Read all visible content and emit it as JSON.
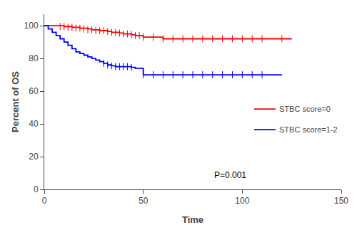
{
  "chart_data": {
    "type": "step",
    "xlabel": "Time",
    "ylabel": "Percent of OS",
    "xlim": [
      0,
      150
    ],
    "ylim": [
      0,
      107
    ],
    "xticks": [
      0,
      50,
      100,
      150
    ],
    "yticks": [
      0,
      20,
      40,
      60,
      80,
      100
    ],
    "grid": false,
    "legend": "right",
    "annotations": [
      {
        "text": "P=0.001",
        "x": 85,
        "y": 5
      }
    ],
    "series": [
      {
        "name": "STBC score=0",
        "color": "#FF0000",
        "x": [
          0,
          4,
          6,
          8,
          10,
          12,
          14,
          16,
          18,
          20,
          22,
          24,
          26,
          28,
          30,
          32,
          34,
          36,
          38,
          40,
          42,
          44,
          46,
          48,
          50,
          55,
          60,
          65,
          70,
          75,
          80,
          85,
          90,
          95,
          100,
          105,
          110,
          120,
          125
        ],
        "values": [
          100,
          100,
          100,
          100,
          99.5,
          99.5,
          99,
          99,
          98.5,
          98.5,
          98,
          97.5,
          97.5,
          97,
          97,
          96.5,
          96,
          96,
          95.5,
          95,
          95,
          94.5,
          94,
          94,
          93,
          93,
          92,
          92,
          92,
          92,
          92,
          92,
          92,
          92,
          92,
          92,
          92,
          92,
          92
        ],
        "censors": {
          "x": [
            8,
            10,
            12,
            14,
            16,
            18,
            20,
            22,
            24,
            26,
            28,
            30,
            32,
            34,
            36,
            38,
            40,
            42,
            44,
            46,
            48,
            50,
            55,
            60,
            65,
            70,
            75,
            80,
            85,
            90,
            95,
            100,
            105,
            110,
            120
          ],
          "values": [
            99.5,
            99.5,
            99,
            99,
            98.5,
            98.5,
            98,
            97.5,
            97.5,
            97,
            97,
            97,
            96.5,
            96,
            96,
            95.5,
            95,
            95,
            94.5,
            94,
            94,
            93,
            93,
            92,
            92,
            92,
            92,
            92,
            92,
            92,
            92,
            92,
            92,
            92,
            92
          ]
        }
      },
      {
        "name": "STBC score=1-2",
        "color": "#0000FF",
        "x": [
          0,
          2,
          4,
          6,
          8,
          10,
          12,
          14,
          16,
          18,
          20,
          22,
          24,
          26,
          28,
          30,
          32,
          34,
          36,
          38,
          40,
          42,
          44,
          46,
          50,
          55,
          60,
          65,
          70,
          75,
          80,
          85,
          90,
          95,
          100,
          105,
          110,
          120
        ],
        "values": [
          100,
          98,
          96,
          94,
          92,
          90,
          88,
          86,
          84,
          83,
          82,
          81,
          80,
          79,
          78,
          77,
          76,
          75.5,
          75,
          75,
          75,
          75,
          74.5,
          74,
          70,
          70,
          70,
          70,
          70,
          70,
          70,
          70,
          70,
          70,
          70,
          70,
          70,
          70
        ],
        "censors": {
          "x": [
            30,
            32,
            34,
            36,
            38,
            40,
            42,
            44,
            50,
            55,
            60,
            65,
            70,
            75,
            80,
            85,
            90,
            95,
            100,
            105,
            110
          ],
          "values": [
            77,
            76,
            75.5,
            75,
            75,
            75,
            75,
            74.5,
            70,
            70,
            70,
            70,
            70,
            70,
            70,
            70,
            70,
            70,
            70,
            70,
            70
          ]
        }
      }
    ]
  }
}
